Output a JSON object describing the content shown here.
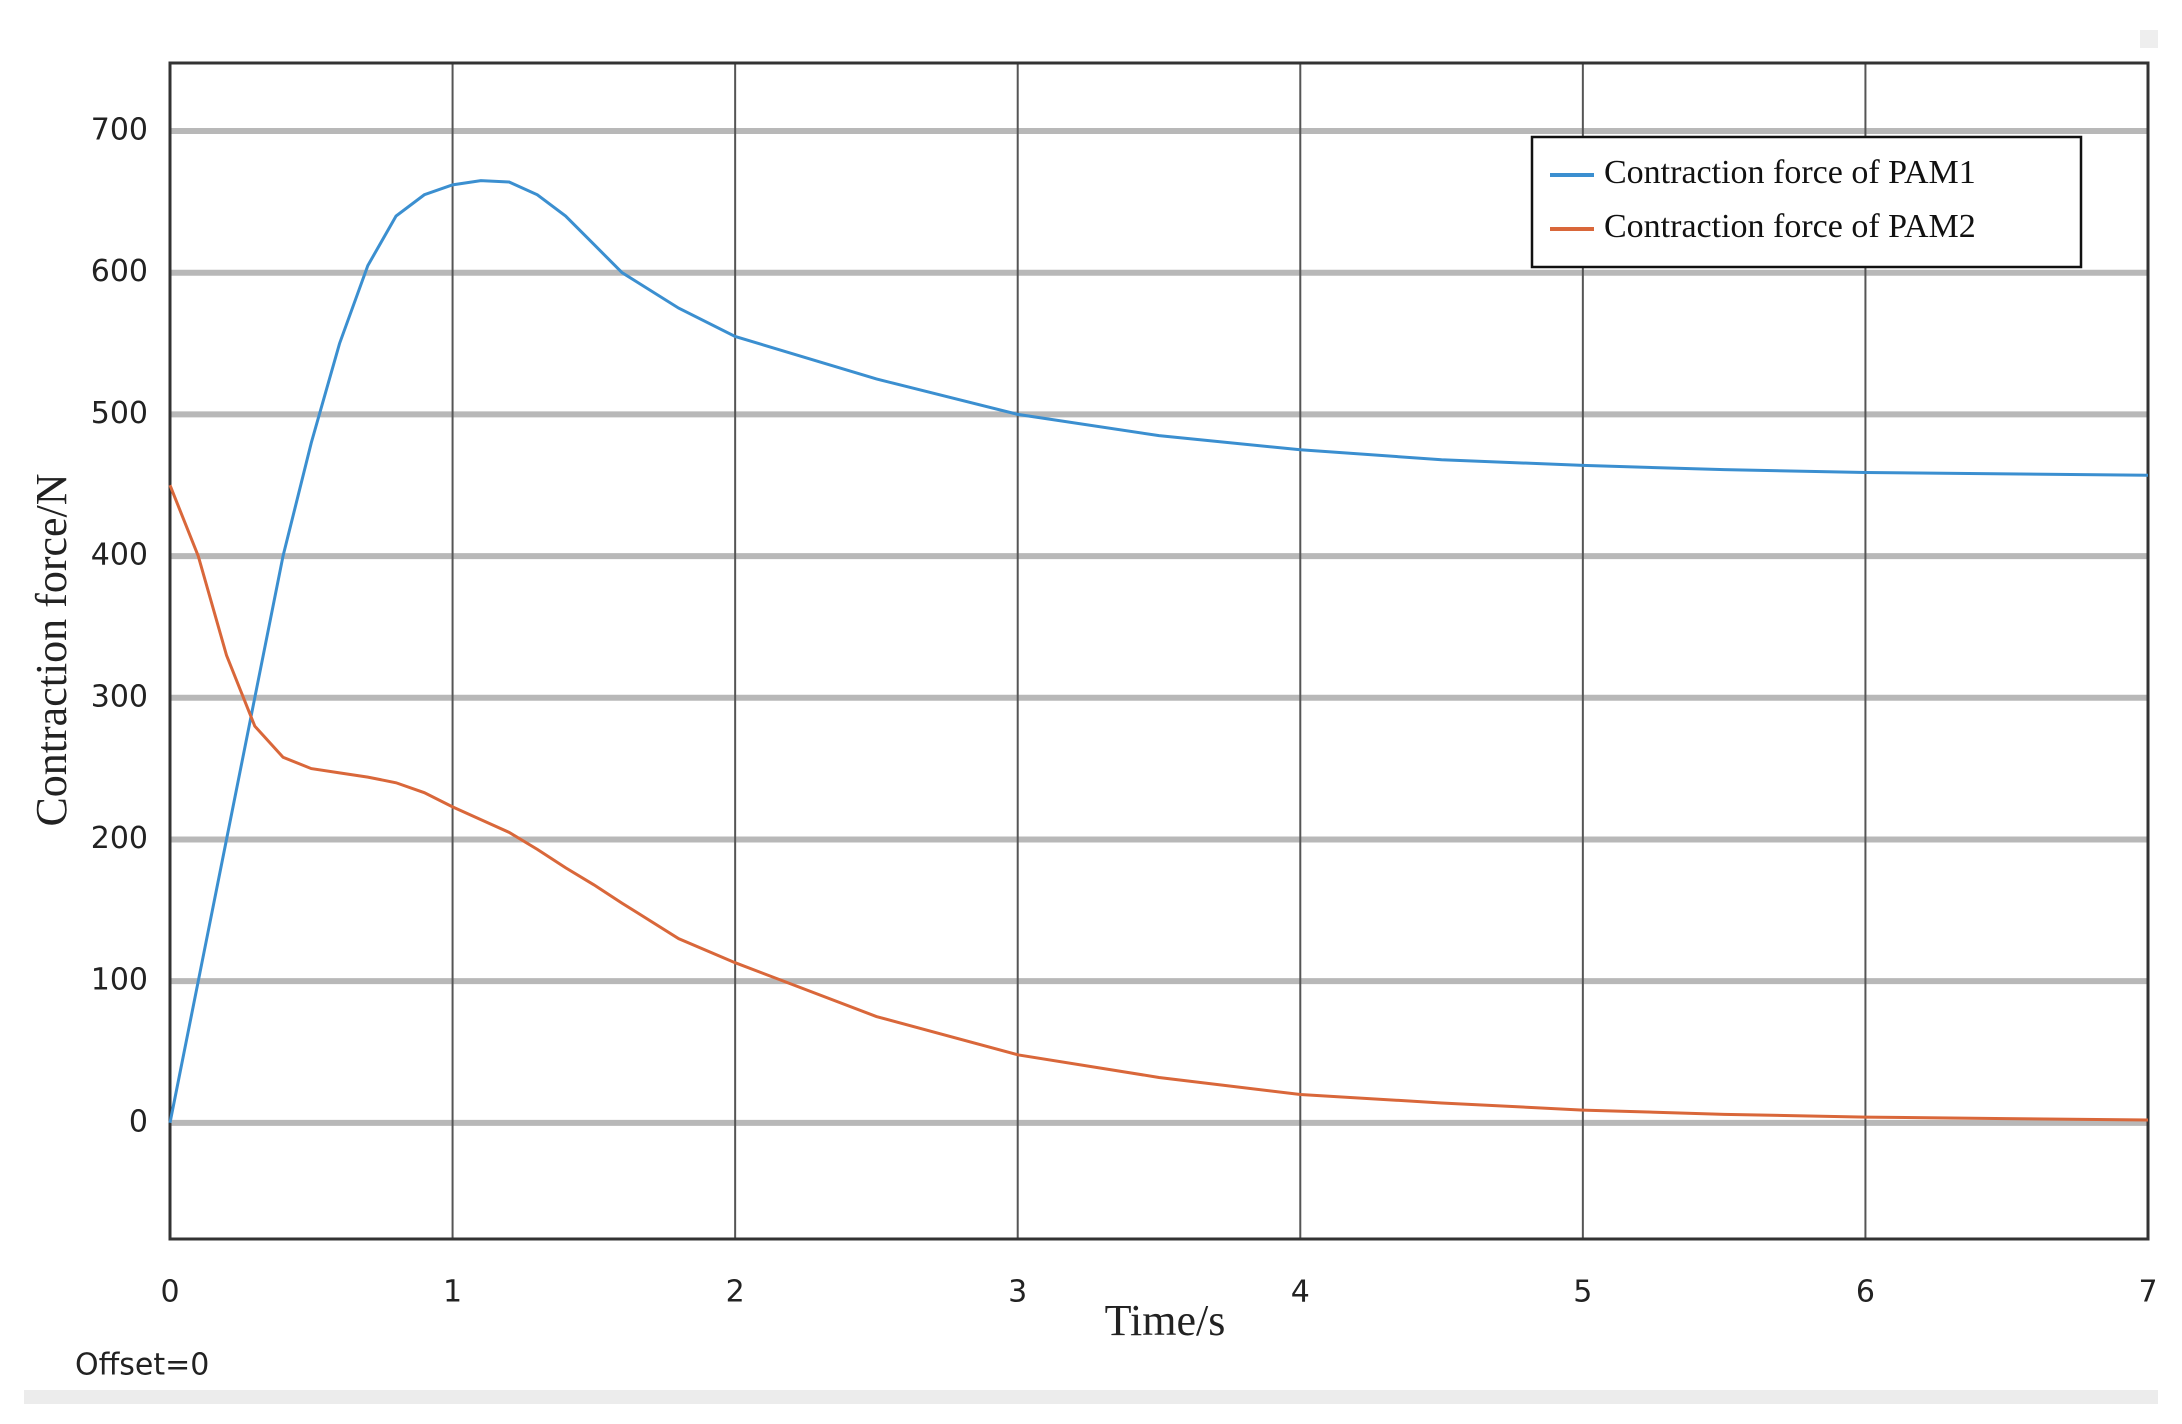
{
  "chart_data": {
    "type": "line",
    "xlabel": "Time/s",
    "ylabel": "Contraction force/N",
    "annotation": "Offset=0",
    "x": [
      0,
      0.1,
      0.2,
      0.3,
      0.4,
      0.5,
      0.6,
      0.7,
      0.8,
      0.9,
      1.0,
      1.1,
      1.2,
      1.3,
      1.4,
      1.5,
      1.6,
      1.8,
      2.0,
      2.5,
      3.0,
      3.5,
      4.0,
      4.5,
      5.0,
      5.5,
      6.0,
      6.5,
      7.0
    ],
    "series": [
      {
        "name": "Contraction force of PAM1",
        "color": "#3b8fd0",
        "values": [
          0,
          100,
          200,
          300,
          400,
          480,
          550,
          605,
          640,
          655,
          662,
          665,
          664,
          655,
          640,
          620,
          600,
          575,
          555,
          525,
          500,
          485,
          475,
          468,
          464,
          461,
          459,
          458,
          457
        ]
      },
      {
        "name": "Contraction force of PAM2",
        "color": "#d9673a",
        "values": [
          450,
          400,
          330,
          280,
          258,
          250,
          247,
          244,
          240,
          233,
          223,
          214,
          205,
          193,
          180,
          168,
          155,
          130,
          113,
          75,
          48,
          32,
          20,
          14,
          9,
          6,
          4,
          3,
          2
        ]
      }
    ],
    "xlim": [
      0,
      7
    ],
    "xticks": [
      0,
      1,
      2,
      3,
      4,
      5,
      6,
      7
    ],
    "ylim": [
      -82,
      748
    ],
    "yticks": [
      0,
      100,
      200,
      300,
      400,
      500,
      600,
      700
    ],
    "grid": true,
    "legend": "upper right"
  }
}
